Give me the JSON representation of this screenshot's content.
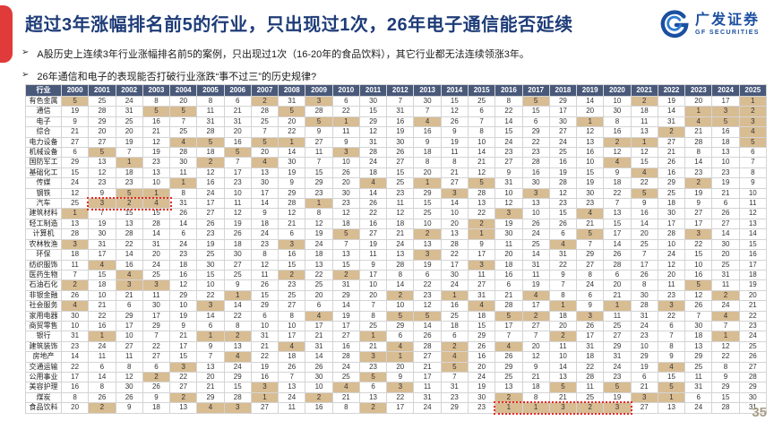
{
  "slide": {
    "title": "超过3年涨幅排名前5的行业，只出现过1次，26年电子通信能否延续",
    "bullets": [
      "A股历史上连续3年行业涨幅排名前5的案例，只出现过1次（16-20年的食品饮料），其它行业都无法连续领涨3年。",
      "26年通信和电子的表现能否打破行业涨跌“事不过三”的历史规律?"
    ],
    "bullet_marker": "➢",
    "page_number": "35",
    "logo": {
      "name_cn": "广发证券",
      "name_en": "GF SECURITIES"
    },
    "colors": {
      "accent_red": "#e03a3a",
      "title_blue": "#1e3c78",
      "table_header_bg": "#49597a",
      "highlight_tan": "#d8bc92",
      "red_box": "#e8281e"
    }
  },
  "table": {
    "header_industry": "行业",
    "years": [
      "2000",
      "2001",
      "2002",
      "2003",
      "2004",
      "2005",
      "2006",
      "2007",
      "2008",
      "2009",
      "2010",
      "2011",
      "2012",
      "2013",
      "2014",
      "2015",
      "2016",
      "2017",
      "2018",
      "2019",
      "2020",
      "2021",
      "2022",
      "2023",
      "2024",
      "2025"
    ],
    "highlight_max_rank": 5,
    "rows": [
      {
        "industry": "有色金属",
        "values": [
          5,
          25,
          24,
          8,
          20,
          8,
          6,
          2,
          31,
          3,
          6,
          30,
          7,
          30,
          15,
          25,
          8,
          5,
          29,
          14,
          10,
          2,
          19,
          20,
          17,
          1
        ]
      },
      {
        "industry": "通信",
        "values": [
          19,
          28,
          31,
          5,
          5,
          11,
          21,
          28,
          5,
          28,
          22,
          15,
          31,
          7,
          12,
          6,
          22,
          15,
          17,
          20,
          30,
          18,
          14,
          1,
          3,
          2
        ]
      },
      {
        "industry": "电子",
        "values": [
          9,
          29,
          25,
          16,
          7,
          31,
          31,
          25,
          20,
          5,
          1,
          29,
          16,
          4,
          26,
          7,
          14,
          6,
          30,
          1,
          8,
          11,
          31,
          4,
          5,
          3
        ]
      },
      {
        "industry": "综合",
        "values": [
          21,
          20,
          20,
          21,
          25,
          28,
          20,
          7,
          22,
          9,
          11,
          12,
          19,
          16,
          9,
          8,
          15,
          29,
          27,
          12,
          16,
          13,
          2,
          21,
          16,
          4
        ]
      },
      {
        "industry": "电力设备",
        "values": [
          27,
          27,
          19,
          12,
          4,
          5,
          16,
          5,
          1,
          27,
          9,
          31,
          30,
          9,
          19,
          10,
          24,
          22,
          24,
          13,
          2,
          1,
          27,
          28,
          18,
          5
        ]
      },
      {
        "industry": "机械设备",
        "values": [
          6,
          5,
          7,
          19,
          28,
          18,
          5,
          20,
          14,
          11,
          3,
          28,
          26,
          18,
          11,
          14,
          23,
          23,
          25,
          16,
          12,
          12,
          21,
          8,
          13,
          6
        ]
      },
      {
        "industry": "国防军工",
        "values": [
          29,
          13,
          1,
          23,
          30,
          2,
          7,
          4,
          30,
          7,
          10,
          24,
          27,
          8,
          8,
          21,
          27,
          28,
          16,
          10,
          4,
          15,
          26,
          14,
          10,
          7
        ]
      },
      {
        "industry": "基础化工",
        "values": [
          15,
          12,
          18,
          13,
          11,
          12,
          17,
          13,
          19,
          15,
          26,
          18,
          15,
          20,
          21,
          12,
          9,
          16,
          19,
          15,
          9,
          4,
          16,
          23,
          23,
          8
        ]
      },
      {
        "industry": "传媒",
        "values": [
          24,
          23,
          23,
          10,
          1,
          16,
          23,
          30,
          9,
          29,
          20,
          4,
          25,
          1,
          27,
          5,
          31,
          30,
          28,
          19,
          18,
          22,
          29,
          2,
          19,
          9
        ]
      },
      {
        "industry": "钢铁",
        "values": [
          12,
          9,
          5,
          1,
          8,
          24,
          10,
          17,
          29,
          23,
          30,
          14,
          23,
          29,
          3,
          28,
          10,
          3,
          12,
          30,
          22,
          5,
          25,
          19,
          21,
          10
        ]
      },
      {
        "industry": "汽车",
        "values": [
          25,
          3,
          2,
          4,
          31,
          17,
          11,
          14,
          28,
          1,
          23,
          26,
          11,
          15,
          14,
          13,
          12,
          13,
          23,
          23,
          7,
          9,
          18,
          9,
          6,
          11
        ]
      },
      {
        "industry": "建筑材料",
        "values": [
          1,
          7,
          15,
          15,
          26,
          27,
          12,
          9,
          12,
          8,
          12,
          22,
          12,
          25,
          10,
          22,
          3,
          10,
          15,
          4,
          13,
          16,
          30,
          27,
          26,
          12
        ]
      },
      {
        "industry": "轻工制造",
        "values": [
          13,
          19,
          13,
          28,
          14,
          26,
          19,
          18,
          21,
          12,
          18,
          16,
          18,
          10,
          20,
          2,
          19,
          26,
          26,
          21,
          15,
          14,
          17,
          17,
          27,
          13
        ]
      },
      {
        "industry": "计算机",
        "values": [
          28,
          30,
          28,
          14,
          6,
          23,
          26,
          24,
          6,
          19,
          5,
          27,
          21,
          2,
          13,
          1,
          30,
          24,
          6,
          5,
          17,
          20,
          28,
          3,
          14,
          14
        ]
      },
      {
        "industry": "农林牧渔",
        "values": [
          3,
          31,
          22,
          31,
          24,
          19,
          18,
          23,
          3,
          24,
          7,
          19,
          24,
          13,
          28,
          9,
          11,
          25,
          4,
          7,
          14,
          25,
          10,
          22,
          30,
          15
        ]
      },
      {
        "industry": "环保",
        "values": [
          18,
          17,
          14,
          20,
          23,
          25,
          30,
          8,
          16,
          18,
          13,
          11,
          13,
          3,
          22,
          17,
          20,
          14,
          31,
          29,
          26,
          7,
          24,
          15,
          20,
          16
        ]
      },
      {
        "industry": "纺织服饰",
        "values": [
          11,
          4,
          16,
          24,
          18,
          30,
          27,
          12,
          15,
          13,
          15,
          9,
          28,
          19,
          17,
          3,
          18,
          31,
          22,
          27,
          28,
          17,
          12,
          10,
          25,
          17
        ]
      },
      {
        "industry": "医药生物",
        "values": [
          7,
          15,
          4,
          25,
          16,
          15,
          25,
          11,
          2,
          22,
          2,
          17,
          8,
          6,
          30,
          11,
          16,
          11,
          9,
          8,
          6,
          26,
          20,
          16,
          31,
          18
        ]
      },
      {
        "industry": "石油石化",
        "values": [
          2,
          18,
          3,
          3,
          12,
          10,
          9,
          26,
          23,
          25,
          31,
          10,
          14,
          22,
          24,
          27,
          6,
          19,
          7,
          24,
          20,
          8,
          11,
          5,
          11,
          19
        ]
      },
      {
        "industry": "非银金融",
        "values": [
          26,
          10,
          21,
          11,
          29,
          22,
          1,
          15,
          25,
          20,
          29,
          20,
          2,
          23,
          1,
          31,
          21,
          4,
          8,
          6,
          21,
          30,
          23,
          12,
          2,
          20
        ]
      },
      {
        "industry": "社会服务",
        "values": [
          4,
          21,
          6,
          30,
          10,
          3,
          14,
          29,
          27,
          6,
          14,
          7,
          10,
          12,
          16,
          4,
          28,
          17,
          1,
          9,
          1,
          28,
          3,
          26,
          24,
          21
        ]
      },
      {
        "industry": "家用电器",
        "values": [
          30,
          22,
          29,
          17,
          19,
          14,
          22,
          6,
          8,
          4,
          19,
          8,
          5,
          5,
          25,
          18,
          5,
          2,
          18,
          3,
          11,
          31,
          22,
          7,
          4,
          22
        ]
      },
      {
        "industry": "商贸零售",
        "values": [
          10,
          16,
          17,
          29,
          9,
          6,
          8,
          10,
          10,
          17,
          17,
          25,
          29,
          14,
          18,
          15,
          17,
          27,
          20,
          26,
          25,
          24,
          6,
          30,
          7,
          23
        ]
      },
      {
        "industry": "银行",
        "values": [
          31,
          1,
          10,
          7,
          21,
          1,
          2,
          31,
          17,
          21,
          27,
          1,
          6,
          26,
          6,
          29,
          7,
          7,
          2,
          17,
          27,
          23,
          7,
          18,
          1,
          24
        ]
      },
      {
        "industry": "建筑装饰",
        "values": [
          23,
          24,
          27,
          22,
          17,
          9,
          13,
          21,
          4,
          31,
          16,
          21,
          4,
          28,
          2,
          26,
          4,
          20,
          11,
          31,
          29,
          10,
          8,
          13,
          12,
          25
        ]
      },
      {
        "industry": "房地产",
        "values": [
          14,
          11,
          11,
          27,
          15,
          7,
          4,
          22,
          18,
          14,
          28,
          3,
          1,
          27,
          4,
          16,
          26,
          12,
          10,
          18,
          31,
          29,
          9,
          29,
          22,
          26
        ]
      },
      {
        "industry": "交通运输",
        "values": [
          22,
          6,
          8,
          6,
          3,
          13,
          24,
          19,
          26,
          26,
          24,
          23,
          20,
          21,
          5,
          20,
          29,
          9,
          14,
          22,
          24,
          19,
          4,
          25,
          8,
          27
        ]
      },
      {
        "industry": "公用事业",
        "values": [
          17,
          14,
          12,
          2,
          22,
          20,
          29,
          16,
          7,
          30,
          25,
          5,
          9,
          17,
          7,
          24,
          25,
          21,
          13,
          28,
          23,
          6,
          15,
          11,
          9,
          28
        ]
      },
      {
        "industry": "美容护理",
        "values": [
          16,
          8,
          30,
          26,
          27,
          21,
          15,
          3,
          13,
          10,
          4,
          6,
          3,
          11,
          31,
          19,
          13,
          18,
          5,
          11,
          5,
          21,
          5,
          31,
          29,
          29
        ]
      },
      {
        "industry": "煤炭",
        "values": [
          8,
          26,
          26,
          9,
          2,
          29,
          28,
          1,
          24,
          2,
          21,
          13,
          22,
          31,
          23,
          30,
          2,
          8,
          21,
          25,
          19,
          3,
          1,
          6,
          15,
          30
        ]
      },
      {
        "industry": "食品饮料",
        "values": [
          20,
          2,
          9,
          18,
          13,
          4,
          3,
          27,
          11,
          16,
          8,
          2,
          17,
          24,
          29,
          23,
          1,
          1,
          3,
          2,
          3,
          27,
          13,
          24,
          28,
          31
        ]
      }
    ],
    "red_boxes": [
      {
        "industry": "汽车",
        "from_year": "2001",
        "to_year": "2003"
      },
      {
        "industry": "食品饮料",
        "from_year": "2016",
        "to_year": "2020"
      }
    ]
  }
}
